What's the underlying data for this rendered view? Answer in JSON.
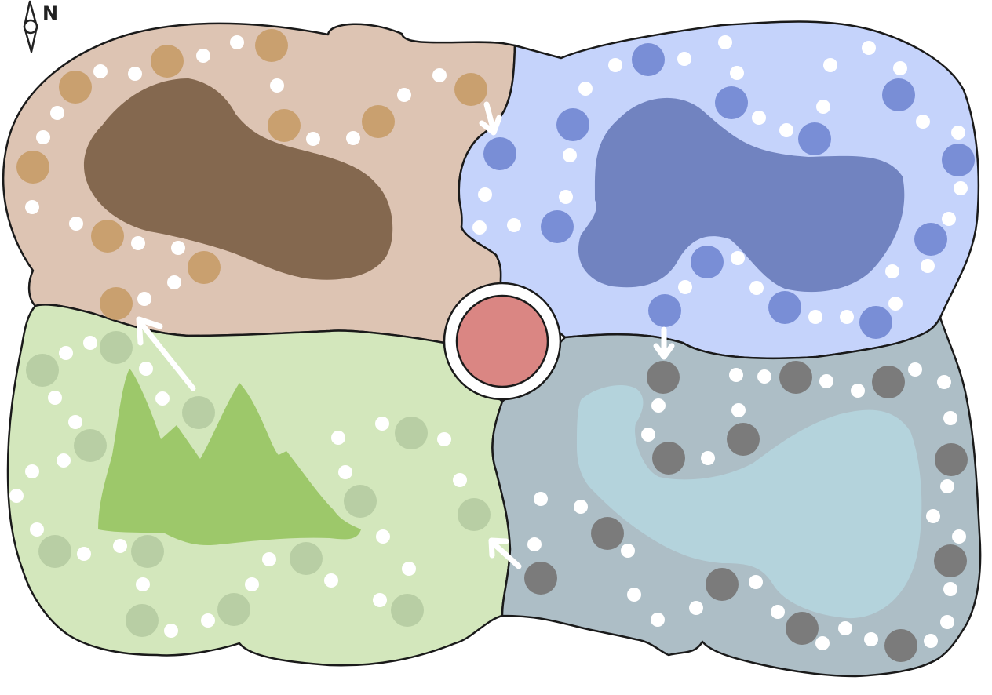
{
  "compass": {
    "label": "N",
    "icon": "compass-icon"
  },
  "colors": {
    "region_brown": "#ddc4b3",
    "region_blue": "#c5d3fb",
    "region_green": "#d3e7bc",
    "region_slate": "#adbec6",
    "terrain_brown": "#84684f",
    "terrain_blue": "#7183c0",
    "terrain_green": "#9dc86a",
    "terrain_slate": "#b4d3dc",
    "space_brown": "#c9a06f",
    "space_blue": "#798ed6",
    "space_green": "#b8cea4",
    "space_slate": "#7b7b7b",
    "space_white": "#ffffff",
    "center": "#da8683",
    "outline": "#1a1a1a"
  },
  "board": {
    "regions": [
      {
        "name": "brown-region",
        "color_key": "region_brown",
        "terrain": "lake"
      },
      {
        "name": "blue-region",
        "color_key": "region_blue",
        "terrain": "lake"
      },
      {
        "name": "green-region",
        "color_key": "region_green",
        "terrain": "mountain"
      },
      {
        "name": "slate-region",
        "color_key": "region_slate",
        "terrain": "lake"
      }
    ],
    "center_space": {
      "name": "center-space",
      "color_key": "center"
    },
    "arrows": [
      {
        "name": "arrow-brown-to-blue",
        "direction": "down"
      },
      {
        "name": "arrow-blue-to-slate",
        "direction": "down"
      },
      {
        "name": "arrow-slate-to-green",
        "direction": "up-left"
      },
      {
        "name": "arrow-green-to-brown",
        "direction": "up-left"
      }
    ]
  }
}
